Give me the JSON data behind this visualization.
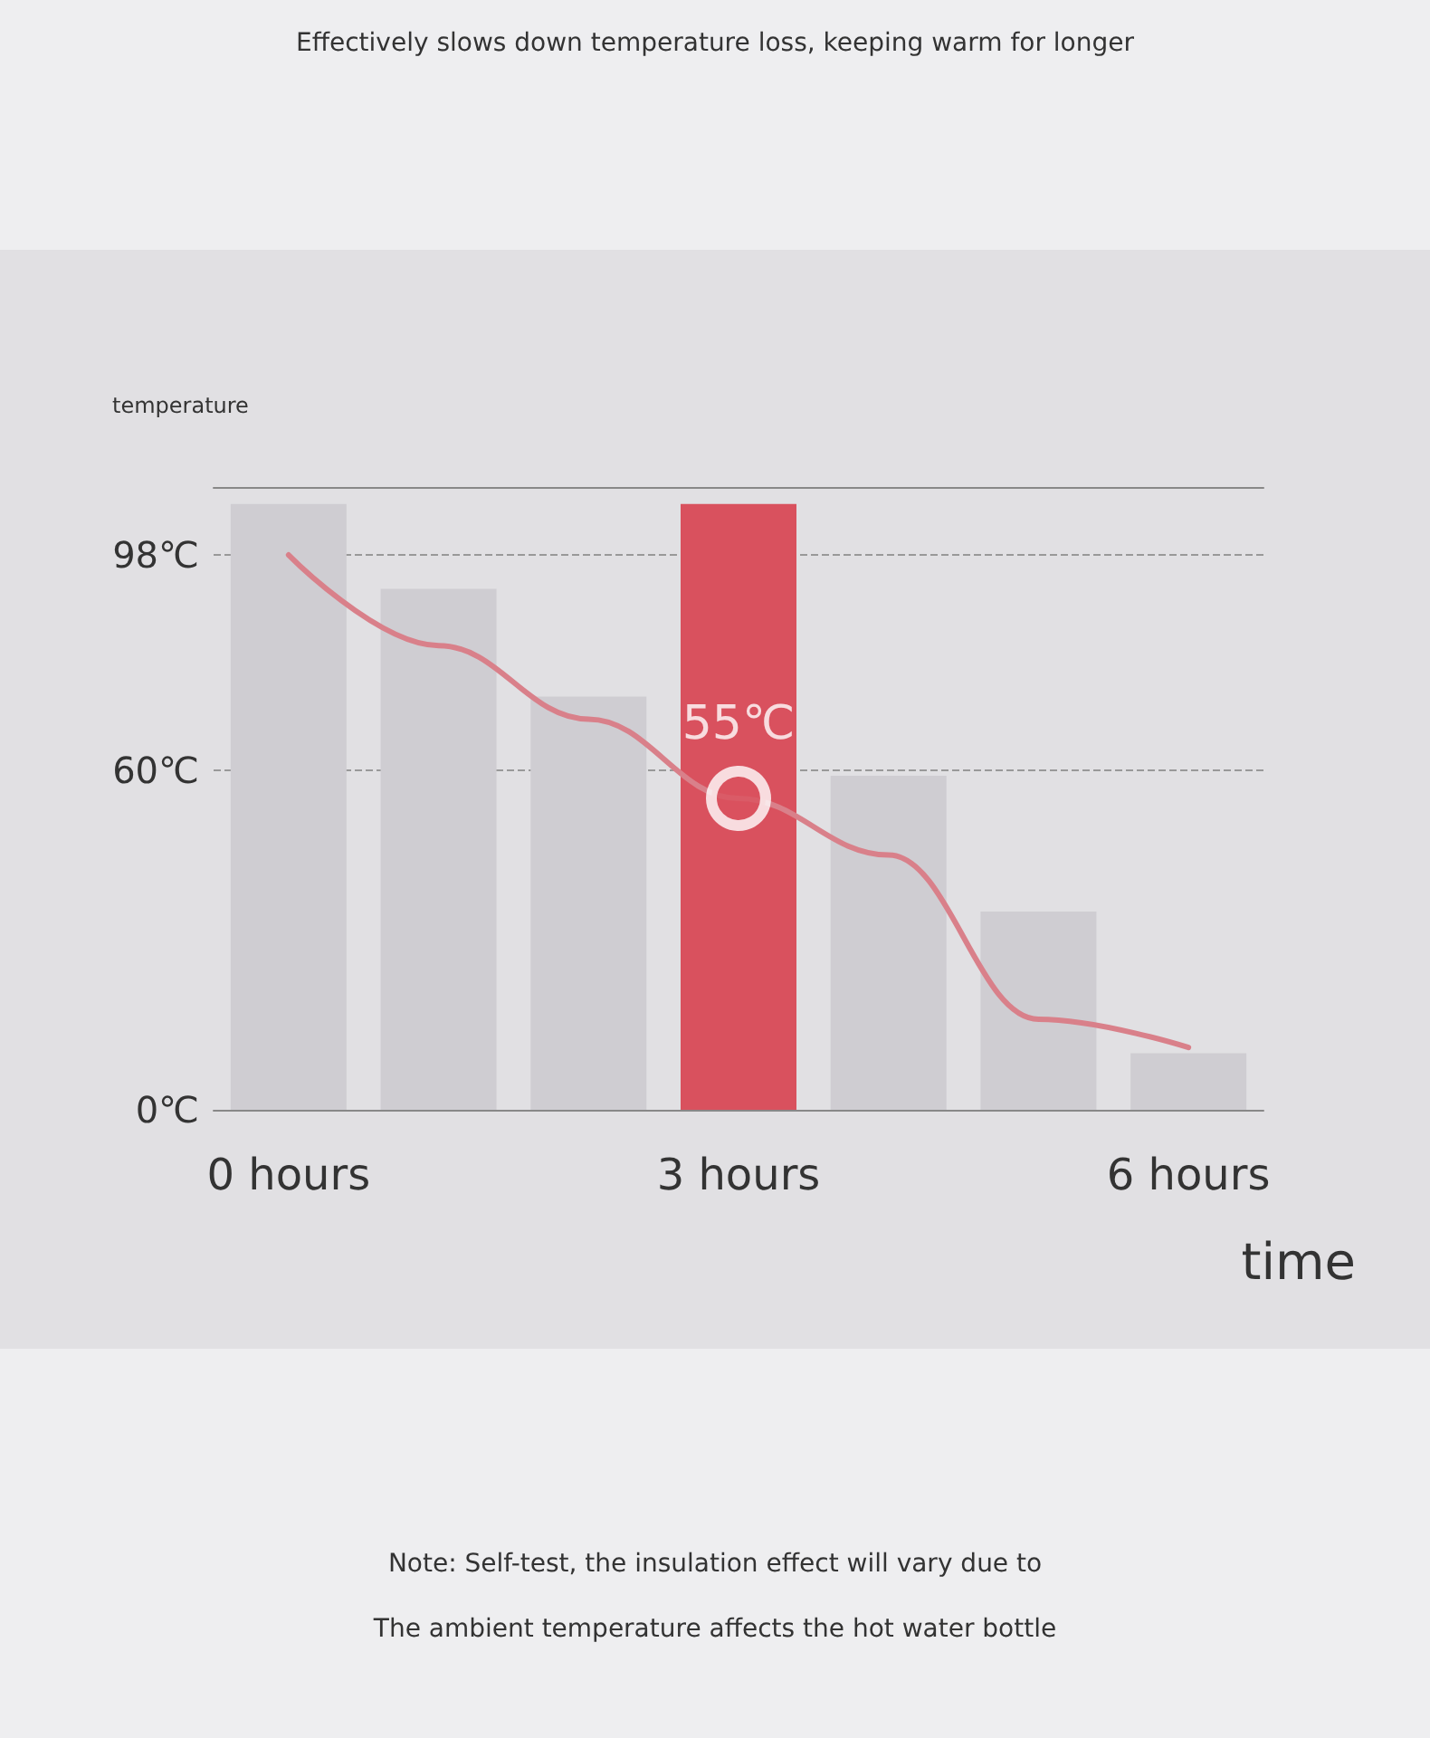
{
  "chart_data": {
    "type": "bar",
    "title": "Effectively slows down temperature loss, keeping warm for longer",
    "ylabel": "temperature",
    "xlabel": "time",
    "annotations": [
      "Note: Self-test, the insulation effect will vary due to",
      "The ambient temperature affects the hot water bottle"
    ],
    "categories": [
      "0 hours",
      null,
      null,
      "3 hours",
      null,
      null,
      "6 hours"
    ],
    "series": [
      {
        "colors": [
          "#cfcdd2",
          "#cfcdd2",
          "#cfcdd2",
          "#d9515e",
          "#cfcdd2",
          "#cfcdd2",
          "#cfcdd2"
        ],
        "values": [
          107,
          92,
          73,
          107,
          59,
          35,
          10
        ]
      },
      {
        "type": "line",
        "color": "#d9808a",
        "marker": "none",
        "values": [
          98,
          82,
          69,
          55,
          45,
          16,
          11
        ]
      },
      {
        "type": "scatter",
        "color": "#d9515e",
        "marker": "circle",
        "x": [
          "3 hours"
        ],
        "values": [
          55
        ],
        "value_labels": [
          "55℃"
        ]
      }
    ],
    "ylim": [
      0,
      110
    ],
    "yticks": [
      {
        "value": 0,
        "label": "0℃"
      },
      {
        "value": 60,
        "label": "60℃"
      },
      {
        "value": 98,
        "label": "98℃"
      }
    ],
    "grid": "y"
  }
}
